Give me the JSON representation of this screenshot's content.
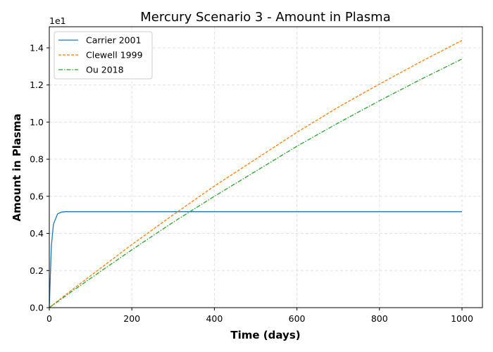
{
  "chart_data": {
    "type": "line",
    "title": "Mercury Scenario 3 - Amount in Plasma",
    "xlabel": "Time (days)",
    "ylabel": "Amount in Plasma",
    "y_offset_label": "1e1",
    "xlim": [
      0,
      1050
    ],
    "ylim": [
      0,
      15.2
    ],
    "x_ticks": [
      0,
      200,
      400,
      600,
      800,
      1000
    ],
    "x_tick_labels": [
      "0",
      "200",
      "400",
      "600",
      "800",
      "1000"
    ],
    "y_ticks": [
      0,
      2,
      4,
      6,
      8,
      10,
      12,
      14
    ],
    "y_tick_labels": [
      "0.0",
      "0.2",
      "0.4",
      "0.6",
      "0.8",
      "1.0",
      "1.2",
      "1.4"
    ],
    "grid": true,
    "legend_position": "upper left",
    "x": [
      0,
      5,
      10,
      20,
      30,
      40,
      50,
      100,
      200,
      300,
      400,
      500,
      600,
      700,
      800,
      900,
      1000
    ],
    "series": [
      {
        "name": "Carrier 2001",
        "color": "#1f77b4",
        "style": "solid",
        "values": [
          0,
          3.3,
          4.5,
          5.05,
          5.15,
          5.17,
          5.17,
          5.17,
          5.17,
          5.17,
          5.17,
          5.17,
          5.17,
          5.17,
          5.17,
          5.17,
          5.17
        ]
      },
      {
        "name": "Clewell 1999",
        "color": "#ff7f0e",
        "style": "dashed",
        "values": [
          0,
          0.09,
          0.18,
          0.35,
          0.52,
          0.7,
          0.87,
          1.72,
          3.4,
          5.0,
          6.55,
          8.0,
          9.45,
          10.8,
          12.05,
          13.25,
          14.4
        ]
      },
      {
        "name": "Ou 2018",
        "color": "#2ca02c",
        "style": "dashdot",
        "values": [
          0,
          0.08,
          0.16,
          0.32,
          0.48,
          0.64,
          0.8,
          1.58,
          3.12,
          4.6,
          6.0,
          7.35,
          8.7,
          9.95,
          11.15,
          12.3,
          13.4
        ]
      }
    ]
  }
}
